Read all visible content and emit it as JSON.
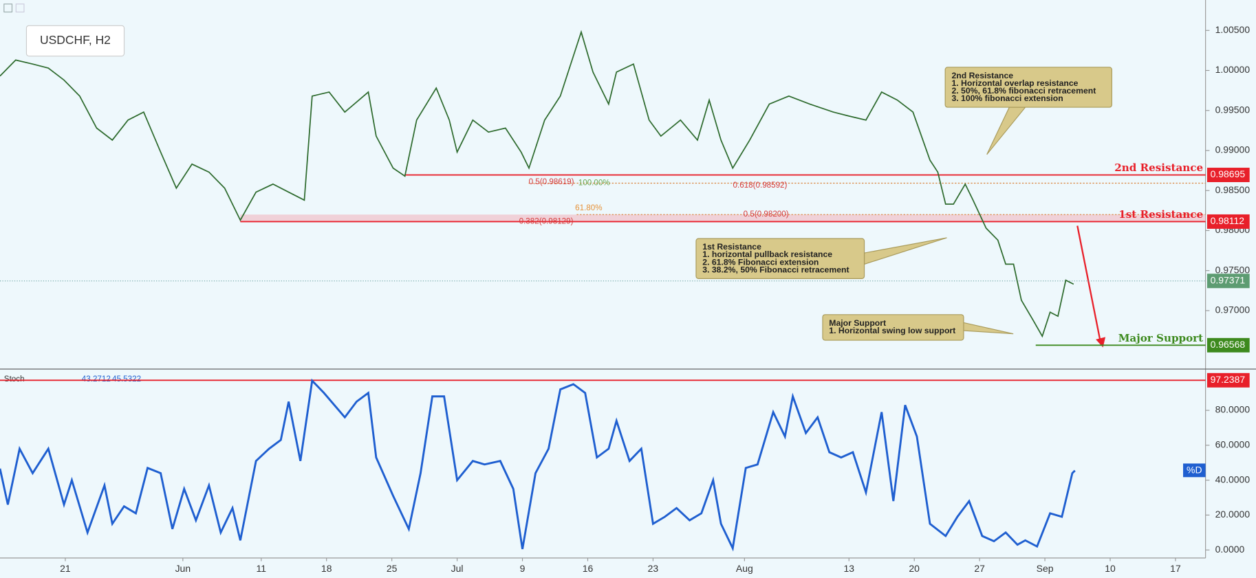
{
  "chart_data": [
    {
      "type": "line",
      "title": "USDCHF, H2",
      "color": "#2e6b2e",
      "x": [
        0,
        1.2,
        2.5,
        3.7,
        4.9,
        6.1,
        7.4,
        8.6,
        9.8,
        11,
        12.3,
        13.5,
        14.7,
        16,
        17.2,
        18.4,
        19.6,
        20.9,
        22.1,
        23.3,
        23.9,
        25.2,
        26.4,
        28.2,
        28.8,
        30.1,
        31,
        31.9,
        33.4,
        34.4,
        35,
        36.2,
        37.4,
        38.7,
        39.9,
        40.5,
        41.7,
        42.9,
        43.9,
        44.5,
        45.4,
        46.6,
        47.2,
        48.5,
        49.7,
        50.6,
        52.1,
        53.4,
        54.3,
        55.2,
        56.1,
        57.4,
        58.9,
        60.4,
        62,
        63.8,
        65,
        66.3,
        67.5,
        68.7,
        69.9,
        71.2,
        71.8,
        72.4,
        73,
        73.9,
        74.5,
        75.5,
        76.4,
        77,
        77.6,
        78.2,
        79.1,
        79.8,
        80.4,
        81,
        81.6,
        82.2
      ],
      "values": [
        0.9993,
        1.0013,
        1.0008,
        1.0003,
        0.9988,
        0.9968,
        0.9928,
        0.9913,
        0.9938,
        0.9948,
        0.9898,
        0.9853,
        0.9883,
        0.9873,
        0.9853,
        0.9813,
        0.9848,
        0.9858,
        0.9848,
        0.9838,
        0.9968,
        0.9973,
        0.9948,
        0.9973,
        0.9918,
        0.9878,
        0.9868,
        0.9938,
        0.9978,
        0.9938,
        0.9898,
        0.9938,
        0.9923,
        0.9928,
        0.9898,
        0.9878,
        0.9938,
        0.9968,
        1.0018,
        1.0048,
        0.9998,
        0.9958,
        0.9998,
        1.0008,
        0.9938,
        0.9918,
        0.9938,
        0.9913,
        0.9963,
        0.9913,
        0.9878,
        0.9913,
        0.9958,
        0.9968,
        0.9958,
        0.9948,
        0.9943,
        0.9938,
        0.9973,
        0.9963,
        0.9948,
        0.9888,
        0.9873,
        0.9833,
        0.9833,
        0.9858,
        0.9838,
        0.9803,
        0.9788,
        0.9758,
        0.9758,
        0.9713,
        0.9688,
        0.9668,
        0.9698,
        0.9693,
        0.9738,
        0.9733
      ],
      "xlim": [
        0,
        92.3
      ],
      "ylim": [
        0.9628,
        1.0088
      ],
      "yticks": [
        {
          "value": 1.005,
          "label": "1.00500"
        },
        {
          "value": 1.0,
          "label": "1.00000"
        },
        {
          "value": 0.995,
          "label": "0.99500"
        },
        {
          "value": 0.99,
          "label": "0.99000"
        },
        {
          "value": 0.985,
          "label": "0.98500"
        },
        {
          "value": 0.98,
          "label": "0.98000"
        },
        {
          "value": 0.975,
          "label": "0.97500"
        },
        {
          "value": 0.97,
          "label": "0.97000"
        }
      ],
      "levels": [
        {
          "label": "2nd Resistance",
          "value": 0.98695,
          "color": "#e8202a",
          "fib_label": "0.5(0.98619)"
        },
        {
          "label": "1st Resistance",
          "value": 0.98112,
          "color": "#e8202a",
          "fib_label": "0.382(0.98129)"
        },
        {
          "label": "Major Support",
          "value": 0.96568,
          "color": "#3d8a1e"
        }
      ],
      "fib_lines": [
        {
          "value": 0.98592,
          "labels": [
            "0.618(0.98592)",
            "100.00%"
          ]
        },
        {
          "value": 0.982,
          "labels": [
            "0.5(0.98200)",
            "61.80%"
          ]
        }
      ],
      "current": {
        "value": 0.97371,
        "color": "#5d9c72"
      },
      "notes": [
        {
          "lines": [
            "2nd Resistance",
            "1. Horizontal overlap resistance",
            "2. 50%, 61.8% fibonacci retracement",
            "3. 100% fibonacci extension"
          ]
        },
        {
          "lines": [
            "1st Resistance",
            "1. horizontal pullback resistance",
            "2. 61.8% Fibonacci extension",
            "3. 38.2%, 50% Fibonacci retracement"
          ]
        },
        {
          "lines": [
            "Major Support",
            "1. Horizontal swing low support"
          ]
        }
      ]
    },
    {
      "type": "line",
      "title": "Stoch",
      "legend_values": [
        43.2712,
        45.5322
      ],
      "series_label": "%D",
      "color": "#1f5fd0",
      "x": [
        0,
        0.6,
        1.5,
        2.5,
        3.7,
        4.9,
        5.5,
        6.7,
        8,
        8.6,
        9.5,
        10.4,
        11.3,
        12.3,
        13.2,
        14.1,
        15,
        16,
        16.9,
        17.8,
        18.4,
        19.6,
        20.6,
        21.5,
        22.1,
        23,
        23.9,
        24.8,
        26.4,
        27.3,
        28.2,
        28.8,
        30.1,
        31.3,
        32.2,
        33.1,
        34,
        35,
        36.2,
        37.1,
        38.3,
        39.3,
        40,
        41,
        42,
        42.9,
        43.9,
        44.8,
        45.7,
        46.6,
        47.2,
        48.2,
        49.1,
        50,
        50.9,
        51.8,
        52.8,
        53.7,
        54.6,
        55.2,
        56.1,
        57.1,
        58,
        59.2,
        60.1,
        60.7,
        61.7,
        62.6,
        63.5,
        64.4,
        65.3,
        66.3,
        67.5,
        68.4,
        69.3,
        70.2,
        71.2,
        72.4,
        73.3,
        74.2,
        75.2,
        76.1,
        77,
        77.9,
        78.5,
        79.4,
        80.4,
        81.3,
        82.1,
        82.3
      ],
      "values": [
        46.6,
        26,
        58,
        44,
        58,
        26,
        40,
        10,
        37,
        15,
        25,
        21,
        47,
        44,
        12,
        35,
        17,
        37,
        10,
        24,
        5.5,
        51,
        58,
        63,
        85,
        51,
        97,
        90,
        76,
        85,
        90,
        53,
        31,
        12,
        44,
        88,
        88,
        40,
        51,
        49,
        51,
        35,
        0.5,
        44,
        58,
        92,
        95,
        90,
        53,
        58,
        74,
        51,
        58,
        15,
        19,
        24,
        17,
        21,
        40,
        15,
        1,
        47,
        49,
        79,
        65,
        88,
        67,
        76,
        56,
        53,
        56,
        33,
        79,
        28,
        83,
        65,
        15,
        8,
        19,
        28,
        8,
        5,
        10,
        3,
        5.5,
        2,
        21,
        19,
        44,
        45.5
      ],
      "level": {
        "value": 97.2387,
        "color": "#e8202a"
      },
      "xlim": [
        0,
        92.3
      ],
      "ylim": [
        -4.6,
        103.2
      ],
      "yticks": [
        {
          "value": 0,
          "label": "0.0000"
        },
        {
          "value": 20,
          "label": "20.0000"
        },
        {
          "value": 40,
          "label": "40.0000"
        },
        {
          "value": 60,
          "label": "60.0000"
        },
        {
          "value": 80,
          "label": "80.0000"
        }
      ],
      "xticks": [
        {
          "value": 5,
          "label": "21"
        },
        {
          "value": 14,
          "label": "Jun"
        },
        {
          "value": 20,
          "label": "11"
        },
        {
          "value": 25,
          "label": "18"
        },
        {
          "value": 30,
          "label": "25"
        },
        {
          "value": 35,
          "label": "Jul"
        },
        {
          "value": 40,
          "label": "9"
        },
        {
          "value": 45,
          "label": "16"
        },
        {
          "value": 50,
          "label": "23"
        },
        {
          "value": 57,
          "label": "Aug"
        },
        {
          "value": 65,
          "label": "13"
        },
        {
          "value": 70,
          "label": "20"
        },
        {
          "value": 75,
          "label": "27"
        },
        {
          "value": 80,
          "label": "Sep"
        },
        {
          "value": 85,
          "label": "10"
        },
        {
          "value": 90,
          "label": "17"
        }
      ]
    }
  ]
}
